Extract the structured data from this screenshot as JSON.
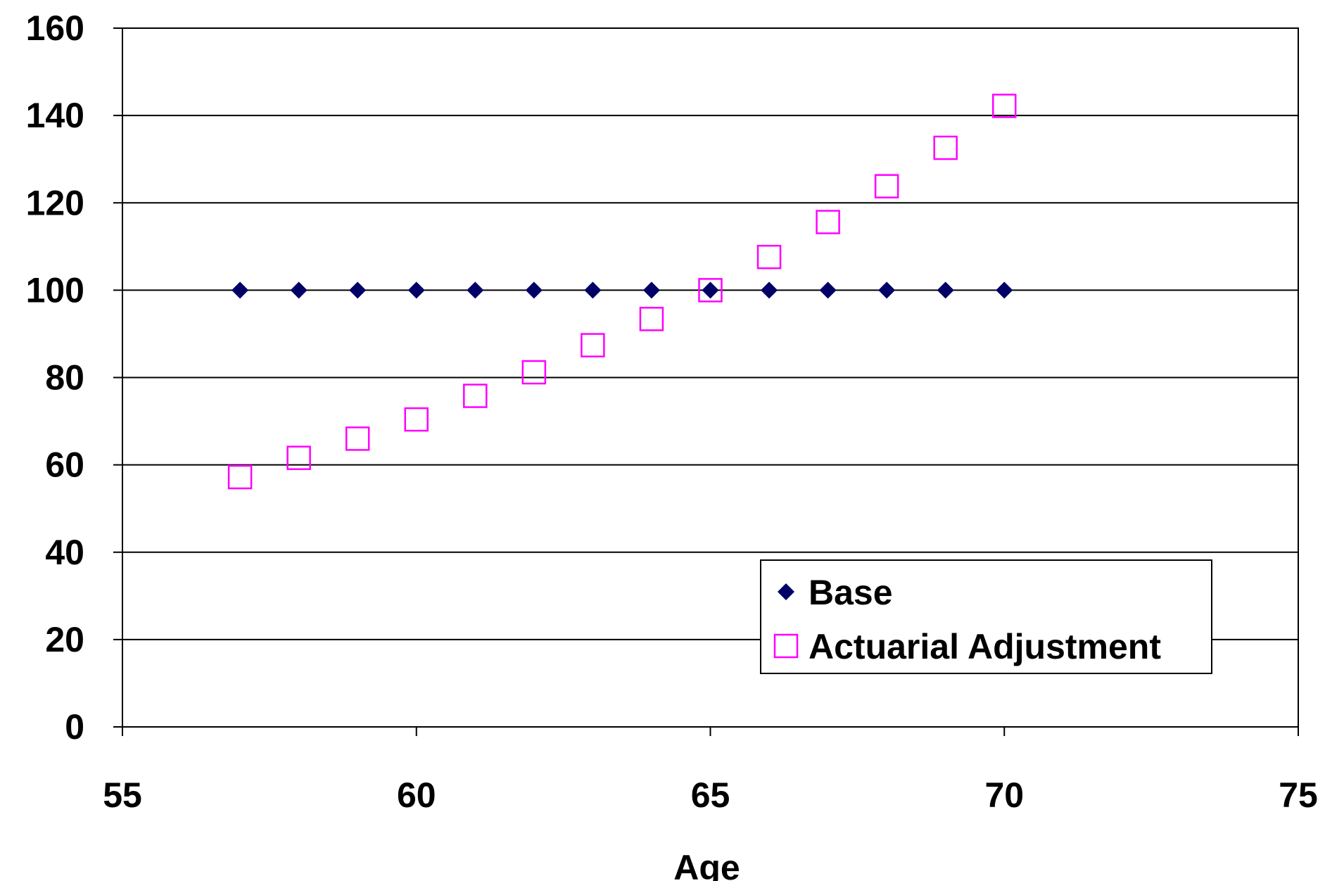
{
  "chart_data": {
    "type": "scatter",
    "title": "",
    "xlabel": "Age",
    "ylabel": "",
    "xlim": [
      55,
      75
    ],
    "ylim": [
      0,
      160
    ],
    "xticks": [
      55,
      60,
      65,
      70,
      75
    ],
    "yticks": [
      0,
      20,
      40,
      60,
      80,
      100,
      120,
      140,
      160
    ],
    "grid": "horizontal",
    "legend_position": "bottom-right",
    "series": [
      {
        "name": "Base",
        "marker": "diamond",
        "color": "#000066",
        "x": [
          57,
          58,
          59,
          60,
          61,
          62,
          63,
          64,
          65,
          66,
          67,
          68,
          69,
          70
        ],
        "y": [
          100,
          100,
          100,
          100,
          100,
          100,
          100,
          100,
          100,
          100,
          100,
          100,
          100,
          100
        ]
      },
      {
        "name": "Actuarial Adjustment",
        "marker": "square-open",
        "color": "#ff00ff",
        "x": [
          57,
          58,
          59,
          60,
          61,
          62,
          63,
          64,
          65,
          66,
          67,
          68,
          69,
          70
        ],
        "y": [
          57.2,
          61.6,
          66,
          70.4,
          75.8,
          81.2,
          87.4,
          93.4,
          100,
          107.6,
          115.6,
          123.8,
          132.6,
          142.2
        ]
      }
    ]
  }
}
